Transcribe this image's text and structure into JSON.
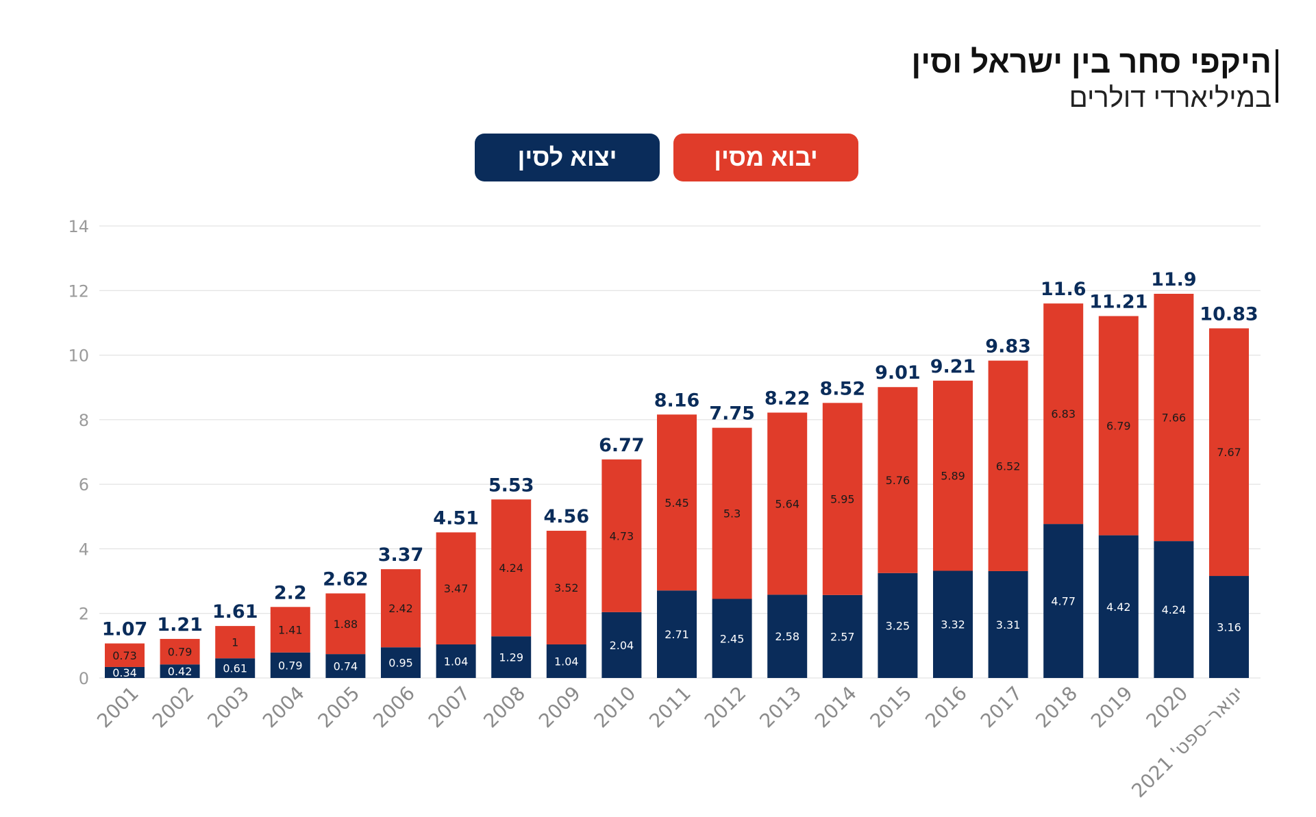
{
  "header": {
    "title": "היקפי סחר בין ישראל וסין",
    "subtitle": "במיליארדי דולרים"
  },
  "legend": {
    "imports_label": "יבוא מסין",
    "exports_label": "יצוא לסין"
  },
  "colors": {
    "imports": "#e03c2a",
    "exports": "#0a2c5a",
    "grid": "#dcdcdc",
    "total_label": "#0a2c5a"
  },
  "chart_data": {
    "type": "bar",
    "stacked": true,
    "title": "היקפי סחר בין ישראל וסין",
    "subtitle": "במיליארדי דולרים",
    "categories": [
      "2001",
      "2002",
      "2003",
      "2004",
      "2005",
      "2006",
      "2007",
      "2008",
      "2009",
      "2010",
      "2011",
      "2012",
      "2013",
      "2014",
      "2015",
      "2016",
      "2017",
      "2018",
      "2019",
      "2020",
      "ינואר–ספט' 2021"
    ],
    "series": [
      {
        "name": "יצוא לסין",
        "values": [
          0.34,
          0.42,
          0.61,
          0.79,
          0.74,
          0.95,
          1.04,
          1.29,
          1.04,
          2.04,
          2.71,
          2.45,
          2.58,
          2.57,
          3.25,
          3.32,
          3.31,
          4.77,
          4.42,
          4.24,
          3.16
        ]
      },
      {
        "name": "יבוא מסין",
        "values": [
          0.73,
          0.79,
          1,
          1.41,
          1.88,
          2.42,
          3.47,
          4.24,
          3.52,
          4.73,
          5.45,
          5.3,
          5.64,
          5.95,
          5.76,
          5.89,
          6.52,
          6.83,
          6.79,
          7.66,
          7.67
        ]
      }
    ],
    "totals": [
      1.07,
      1.21,
      1.61,
      2.2,
      2.62,
      3.37,
      4.51,
      5.53,
      4.56,
      6.77,
      8.16,
      7.75,
      8.22,
      8.52,
      9.01,
      9.21,
      9.83,
      11.6,
      11.21,
      11.9,
      10.83
    ],
    "ylim": [
      0,
      14
    ],
    "yticks": [
      0,
      2,
      4,
      6,
      8,
      10,
      12,
      14
    ],
    "grid": true,
    "legend_position": "top-center"
  }
}
